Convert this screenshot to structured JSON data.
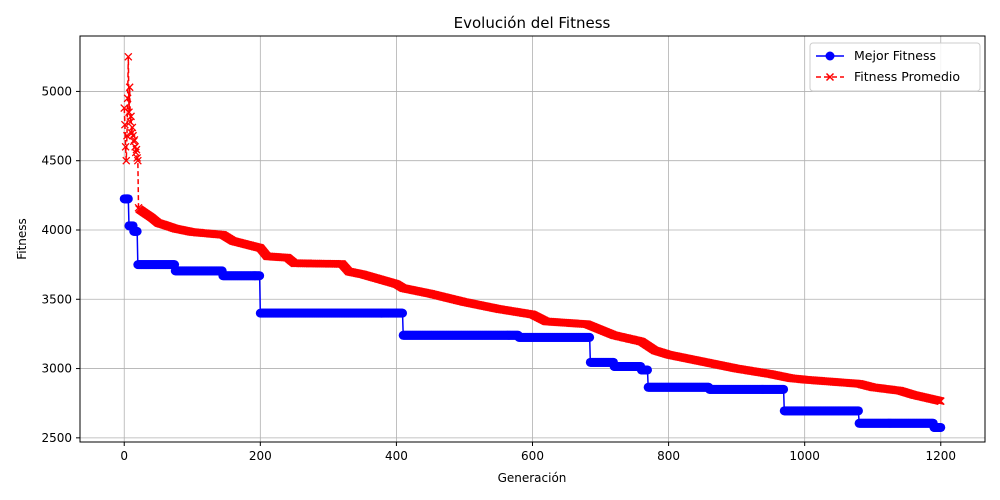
{
  "chart_data": {
    "type": "line",
    "title": "Evolución del Fitness",
    "xlabel": "Generación",
    "ylabel": "Fitness",
    "xlim": [
      -65,
      1265
    ],
    "ylim": [
      2470,
      5400
    ],
    "xticks": [
      0,
      200,
      400,
      600,
      800,
      1000,
      1200
    ],
    "yticks": [
      2500,
      3000,
      3500,
      4000,
      4500,
      5000
    ],
    "grid": true,
    "legend_position": "top-right",
    "series": [
      {
        "name": "Mejor Fitness",
        "color": "#0000ff",
        "linestyle": "solid",
        "marker": "circle",
        "steps": [
          [
            0,
            4225
          ],
          [
            7,
            4030
          ],
          [
            14,
            3990
          ],
          [
            20,
            3750
          ],
          [
            75,
            3705
          ],
          [
            145,
            3670
          ],
          [
            200,
            3400
          ],
          [
            410,
            3240
          ],
          [
            580,
            3225
          ],
          [
            685,
            3045
          ],
          [
            720,
            3015
          ],
          [
            760,
            2990
          ],
          [
            770,
            2865
          ],
          [
            860,
            2850
          ],
          [
            970,
            2695
          ],
          [
            1080,
            2605
          ],
          [
            1190,
            2575
          ],
          [
            1200,
            2575
          ]
        ]
      },
      {
        "name": "Fitness Promedio",
        "color": "#ff0000",
        "linestyle": "dashed",
        "marker": "x",
        "early": [
          [
            0,
            4880
          ],
          [
            1,
            4760
          ],
          [
            2,
            4600
          ],
          [
            3,
            4500
          ],
          [
            4,
            4680
          ],
          [
            5,
            4950
          ],
          [
            6,
            5250
          ],
          [
            7,
            4850
          ],
          [
            8,
            5030
          ],
          [
            9,
            4780
          ],
          [
            10,
            4820
          ],
          [
            11,
            4700
          ],
          [
            12,
            4740
          ],
          [
            13,
            4680
          ],
          [
            14,
            4640
          ],
          [
            15,
            4650
          ],
          [
            16,
            4600
          ],
          [
            17,
            4560
          ],
          [
            18,
            4580
          ],
          [
            19,
            4520
          ],
          [
            20,
            4500
          ],
          [
            21,
            4160
          ]
        ],
        "trend": [
          [
            22,
            4150
          ],
          [
            40,
            4090
          ],
          [
            50,
            4050
          ],
          [
            60,
            4035
          ],
          [
            75,
            4010
          ],
          [
            100,
            3985
          ],
          [
            145,
            3965
          ],
          [
            160,
            3920
          ],
          [
            200,
            3870
          ],
          [
            210,
            3810
          ],
          [
            240,
            3800
          ],
          [
            250,
            3760
          ],
          [
            320,
            3755
          ],
          [
            330,
            3700
          ],
          [
            350,
            3680
          ],
          [
            400,
            3610
          ],
          [
            410,
            3580
          ],
          [
            450,
            3540
          ],
          [
            500,
            3480
          ],
          [
            550,
            3430
          ],
          [
            600,
            3390
          ],
          [
            620,
            3340
          ],
          [
            680,
            3320
          ],
          [
            720,
            3240
          ],
          [
            760,
            3195
          ],
          [
            780,
            3130
          ],
          [
            800,
            3100
          ],
          [
            850,
            3050
          ],
          [
            900,
            3000
          ],
          [
            950,
            2960
          ],
          [
            980,
            2930
          ],
          [
            1000,
            2920
          ],
          [
            1040,
            2905
          ],
          [
            1080,
            2890
          ],
          [
            1100,
            2865
          ],
          [
            1140,
            2840
          ],
          [
            1160,
            2810
          ],
          [
            1200,
            2765
          ]
        ]
      }
    ]
  }
}
